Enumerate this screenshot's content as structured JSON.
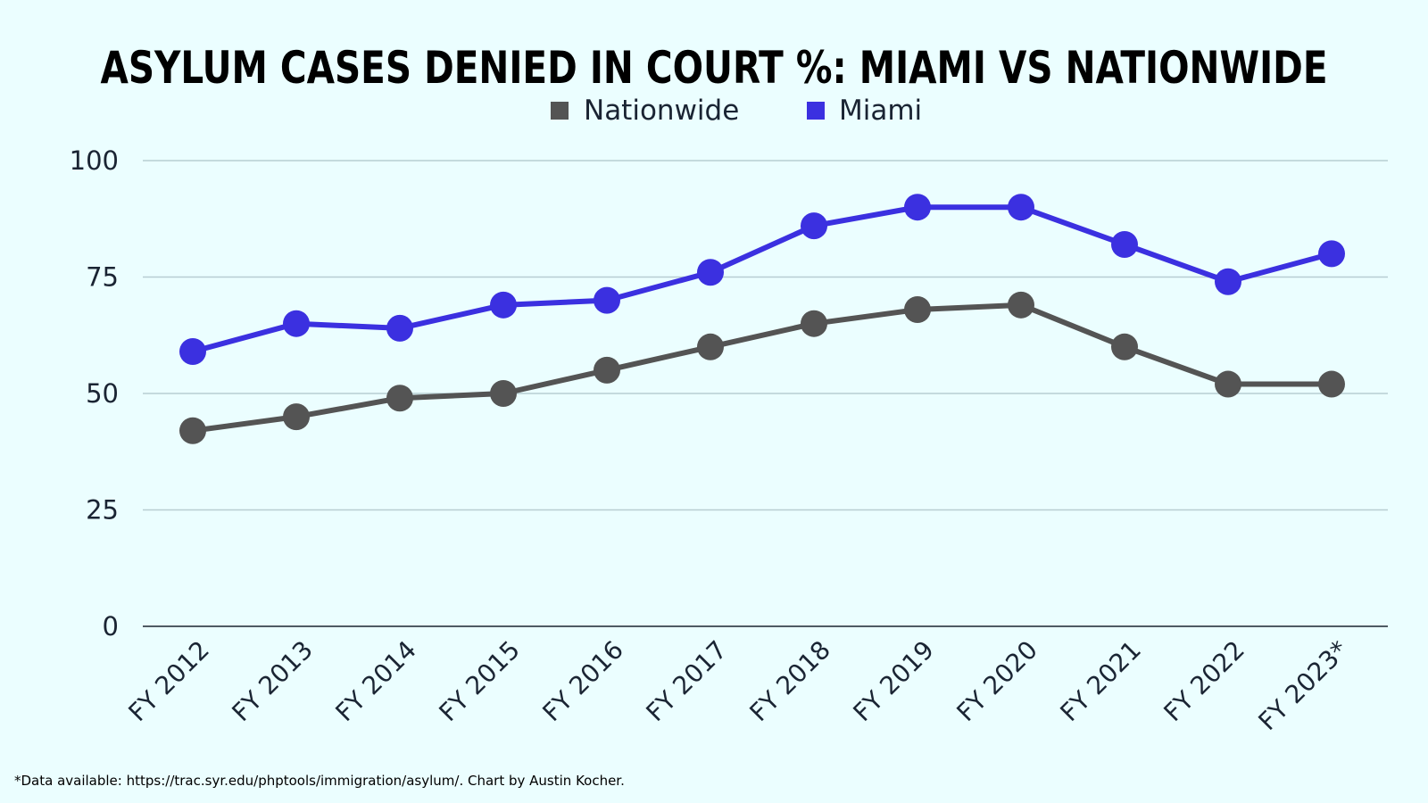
{
  "chart_data": {
    "type": "line",
    "title": "ASYLUM CASES DENIED IN COURT %: MIAMI VS NATIONWIDE",
    "xlabel": "",
    "ylabel": "",
    "categories": [
      "FY 2012",
      "FY 2013",
      "FY 2014",
      "FY 2015",
      "FY 2016",
      "FY 2017",
      "FY 2018",
      "FY 2019",
      "FY 2020",
      "FY 2021",
      "FY 2022",
      "FY 2023*"
    ],
    "series": [
      {
        "name": "Nationwide",
        "color": "#545454",
        "values": [
          42,
          45,
          49,
          50,
          55,
          60,
          65,
          68,
          69,
          60,
          52,
          52
        ]
      },
      {
        "name": "Miami",
        "color": "#3b30e0",
        "values": [
          59,
          65,
          64,
          69,
          70,
          76,
          86,
          90,
          90,
          82,
          74,
          80
        ]
      }
    ],
    "ylim": [
      0,
      100
    ],
    "yticks": [
      0,
      25,
      50,
      75,
      100
    ],
    "ytick_labels": [
      "0",
      "25",
      "50",
      "75",
      "100"
    ],
    "grid": "horizontal",
    "legend_position": "top-center",
    "footnote": "*Data available: https://trac.syr.edu/phptools/immigration/asylum/. Chart by Austin Kocher."
  }
}
